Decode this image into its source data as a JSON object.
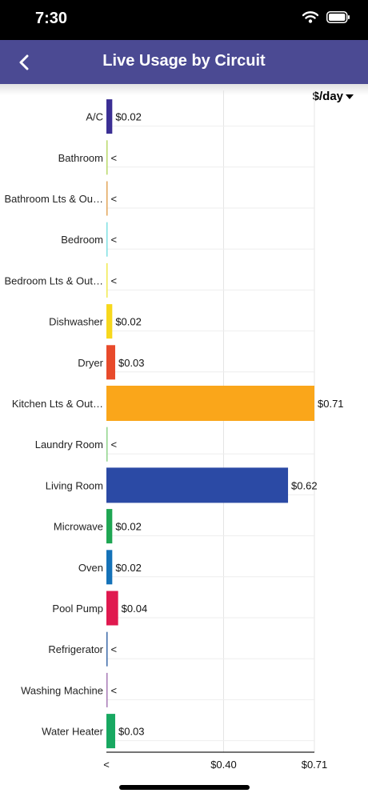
{
  "status_bar": {
    "time": "7:30"
  },
  "nav": {
    "title": "Live Usage by Circuit"
  },
  "unit_selector": {
    "label": "$/day"
  },
  "chart_data": {
    "type": "bar",
    "orientation": "horizontal",
    "title": "",
    "xlabel": "",
    "ylabel": "",
    "xlim": [
      0,
      0.71
    ],
    "x_ticks": [
      "<",
      "$0.40",
      "$0.71"
    ],
    "categories": [
      "A/C",
      "Bathroom",
      "Bathroom Lts & Ou…",
      "Bedroom",
      "Bedroom Lts & Out…",
      "Dishwasher",
      "Dryer",
      "Kitchen Lts & Out…",
      "Laundry Room",
      "Living Room",
      "Microwave",
      "Oven",
      "Pool Pump",
      "Refrigerator",
      "Washing Machine",
      "Water Heater"
    ],
    "values": [
      0.02,
      0.002,
      0.002,
      0.002,
      0.002,
      0.02,
      0.03,
      0.71,
      0.002,
      0.62,
      0.02,
      0.02,
      0.04,
      0.002,
      0.002,
      0.03
    ],
    "value_labels": [
      "$0.02",
      "<",
      "<",
      "<",
      "<",
      "$0.02",
      "$0.03",
      "$0.71",
      "<",
      "$0.62",
      "$0.02",
      "$0.02",
      "$0.04",
      "<",
      "<",
      "$0.03"
    ],
    "colors": [
      "#3b2f94",
      "#b9d96a",
      "#e3a55a",
      "#7fe0e3",
      "#f0ea4e",
      "#f7d81d",
      "#e84a2b",
      "#faa61a",
      "#8fd48a",
      "#2b4aa5",
      "#1fa653",
      "#1572b8",
      "#e0194f",
      "#3b69a8",
      "#a778b5",
      "#18a861"
    ],
    "grid": true,
    "legend": "none"
  }
}
